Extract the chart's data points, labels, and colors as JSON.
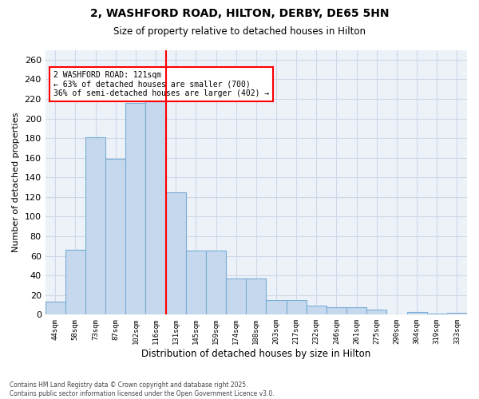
{
  "title_line1": "2, WASHFORD ROAD, HILTON, DERBY, DE65 5HN",
  "title_line2": "Size of property relative to detached houses in Hilton",
  "xlabel": "Distribution of detached houses by size in Hilton",
  "ylabel": "Number of detached properties",
  "categories": [
    "44sqm",
    "58sqm",
    "73sqm",
    "87sqm",
    "102sqm",
    "116sqm",
    "131sqm",
    "145sqm",
    "159sqm",
    "174sqm",
    "188sqm",
    "203sqm",
    "217sqm",
    "232sqm",
    "246sqm",
    "261sqm",
    "275sqm",
    "290sqm",
    "304sqm",
    "319sqm",
    "333sqm"
  ],
  "values": [
    13,
    66,
    181,
    159,
    216,
    218,
    125,
    65,
    65,
    37,
    37,
    15,
    15,
    9,
    8,
    8,
    5,
    0,
    3,
    1,
    2
  ],
  "bar_color": "#c5d8ee",
  "bar_edge_color": "#7aadd4",
  "grid_color": "#d0d8e8",
  "background_color": "#edf2f9",
  "ref_line_color": "red",
  "annotation_text": "2 WASHFORD ROAD: 121sqm\n← 63% of detached houses are smaller (700)\n36% of semi-detached houses are larger (402) →",
  "footer_line1": "Contains HM Land Registry data © Crown copyright and database right 2025.",
  "footer_line2": "Contains public sector information licensed under the Open Government Licence v3.0.",
  "ylim": [
    0,
    270
  ],
  "yticks": [
    0,
    20,
    40,
    60,
    80,
    100,
    120,
    140,
    160,
    180,
    200,
    220,
    240,
    260
  ]
}
